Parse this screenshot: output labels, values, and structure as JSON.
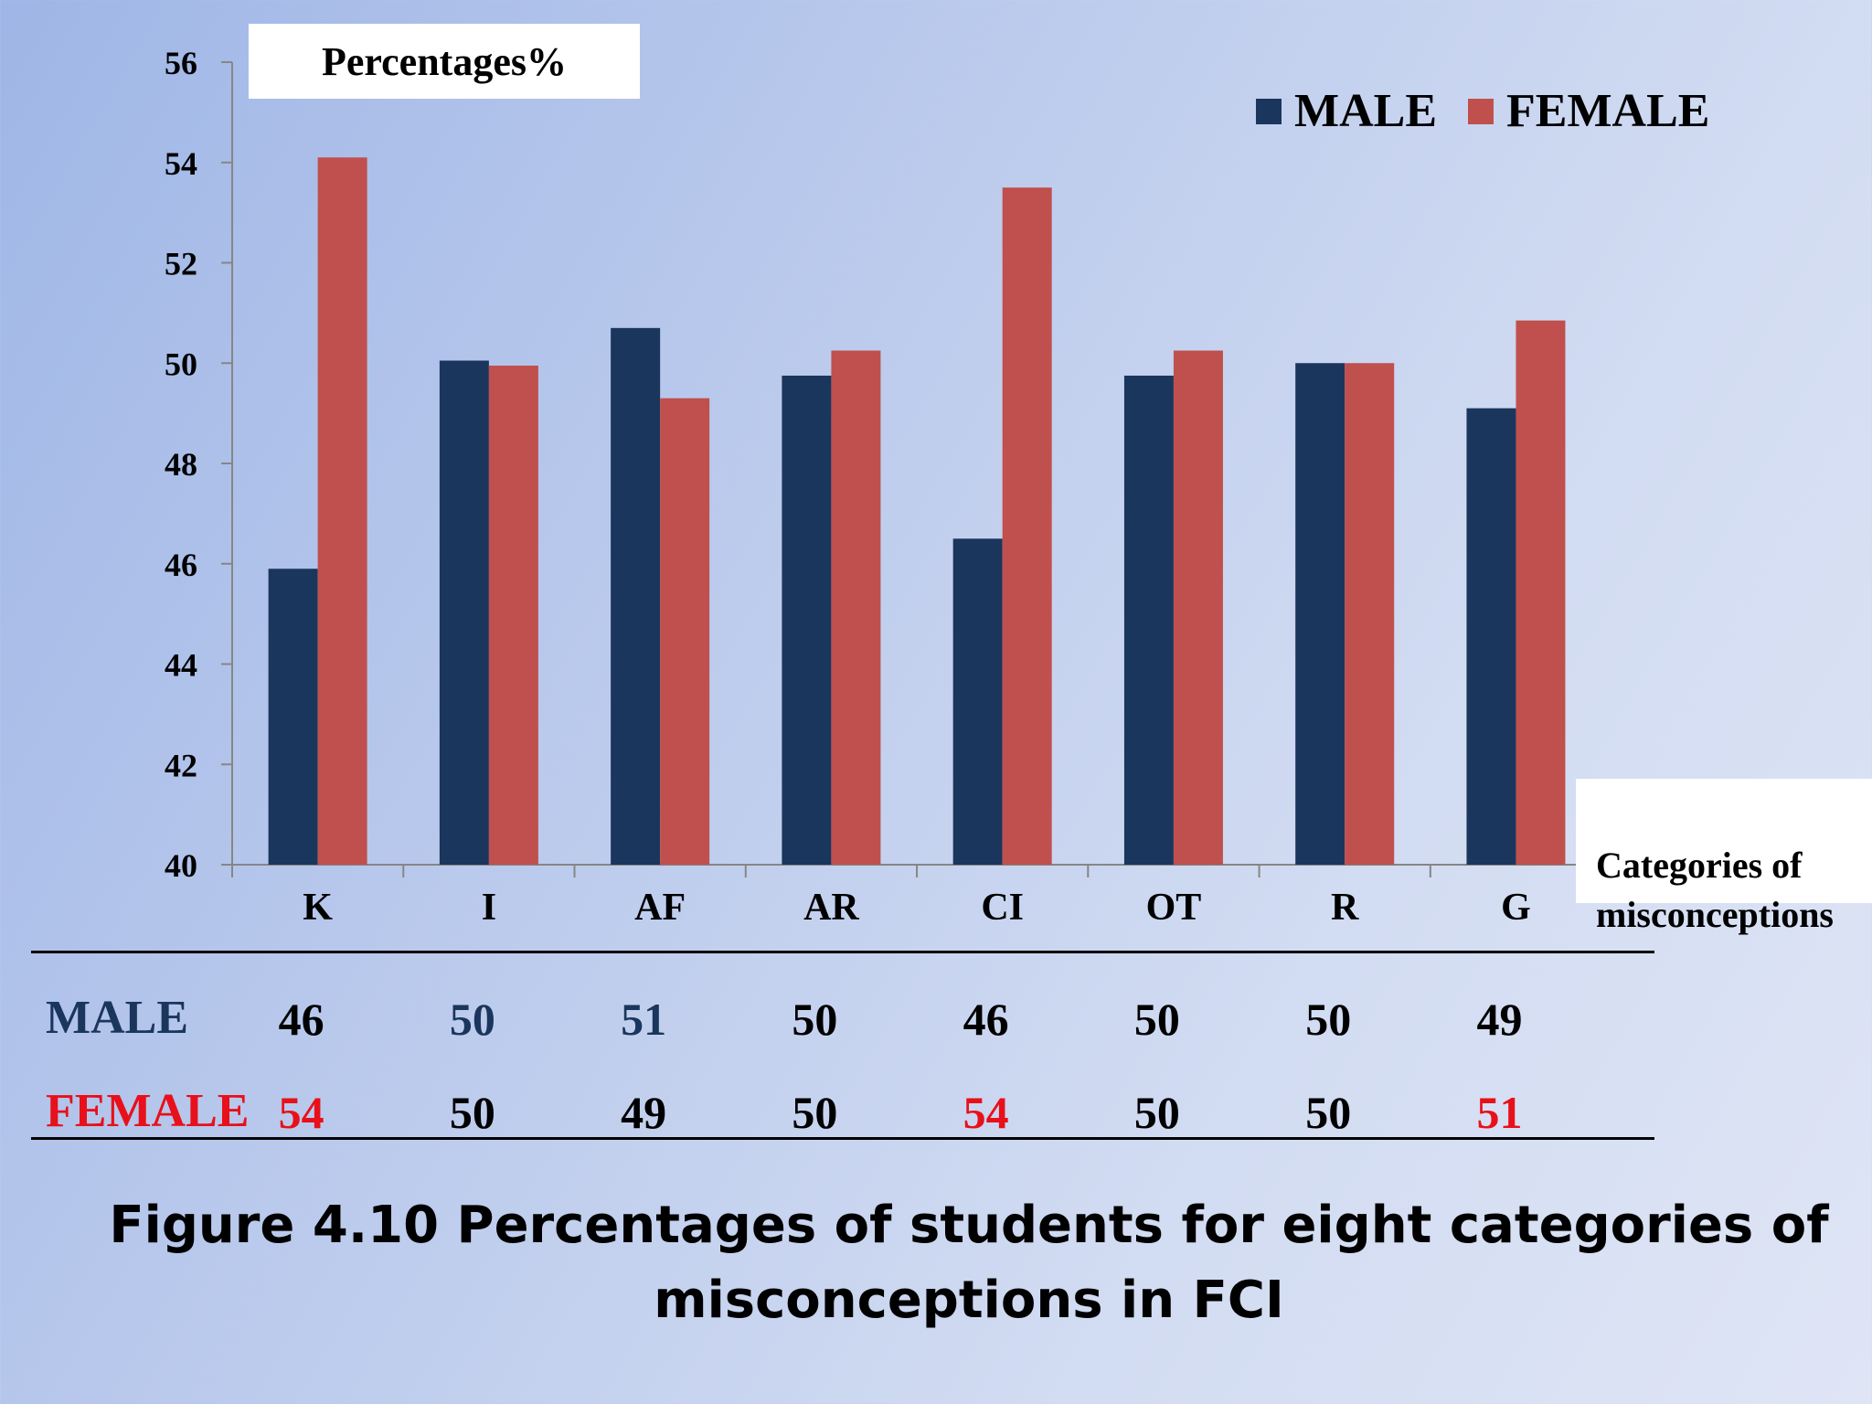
{
  "chart_data": {
    "type": "bar",
    "categories": [
      "K",
      "I",
      "AF",
      "AR",
      "CI",
      "OT",
      "R",
      "G"
    ],
    "series": [
      {
        "name": "MALE",
        "color": "#1b365d",
        "values": [
          45.9,
          50.05,
          50.7,
          49.75,
          46.5,
          49.75,
          50,
          49.1
        ]
      },
      {
        "name": "FEMALE",
        "color": "#c0504d",
        "values": [
          54.1,
          49.95,
          49.3,
          50.25,
          53.5,
          50.25,
          50,
          50.85
        ]
      }
    ],
    "ylabel": "Percentages%",
    "xlabel": "Categories of\nmisconceptions",
    "ylim": [
      40,
      56
    ],
    "yticks": [
      40,
      42,
      44,
      46,
      48,
      50,
      52,
      54,
      56
    ],
    "legend_position": "top-right",
    "grid": false
  },
  "legend": {
    "male": "MALE",
    "female": "FEMALE"
  },
  "table": {
    "rows": [
      {
        "label": "MALE",
        "label_color": "#1b365d",
        "cells": [
          {
            "text": "46",
            "color": "#000000"
          },
          {
            "text": "50",
            "color": "#1b365d"
          },
          {
            "text": "51",
            "color": "#1b365d"
          },
          {
            "text": "50",
            "color": "#000000"
          },
          {
            "text": "46",
            "color": "#000000"
          },
          {
            "text": "50",
            "color": "#000000"
          },
          {
            "text": "50",
            "color": "#000000"
          },
          {
            "text": "49",
            "color": "#000000"
          }
        ]
      },
      {
        "label": "FEMALE",
        "label_color": "#e8101a",
        "cells": [
          {
            "text": "54",
            "color": "#e8101a"
          },
          {
            "text": "50",
            "color": "#000000"
          },
          {
            "text": "49",
            "color": "#000000"
          },
          {
            "text": "50",
            "color": "#000000"
          },
          {
            "text": "54",
            "color": "#e8101a"
          },
          {
            "text": "50",
            "color": "#000000"
          },
          {
            "text": "50",
            "color": "#000000"
          },
          {
            "text": "51",
            "color": "#e8101a"
          }
        ]
      }
    ]
  },
  "caption": "Figure 4.10 Percentages of students for eight categories of\nmisconceptions in FCI"
}
